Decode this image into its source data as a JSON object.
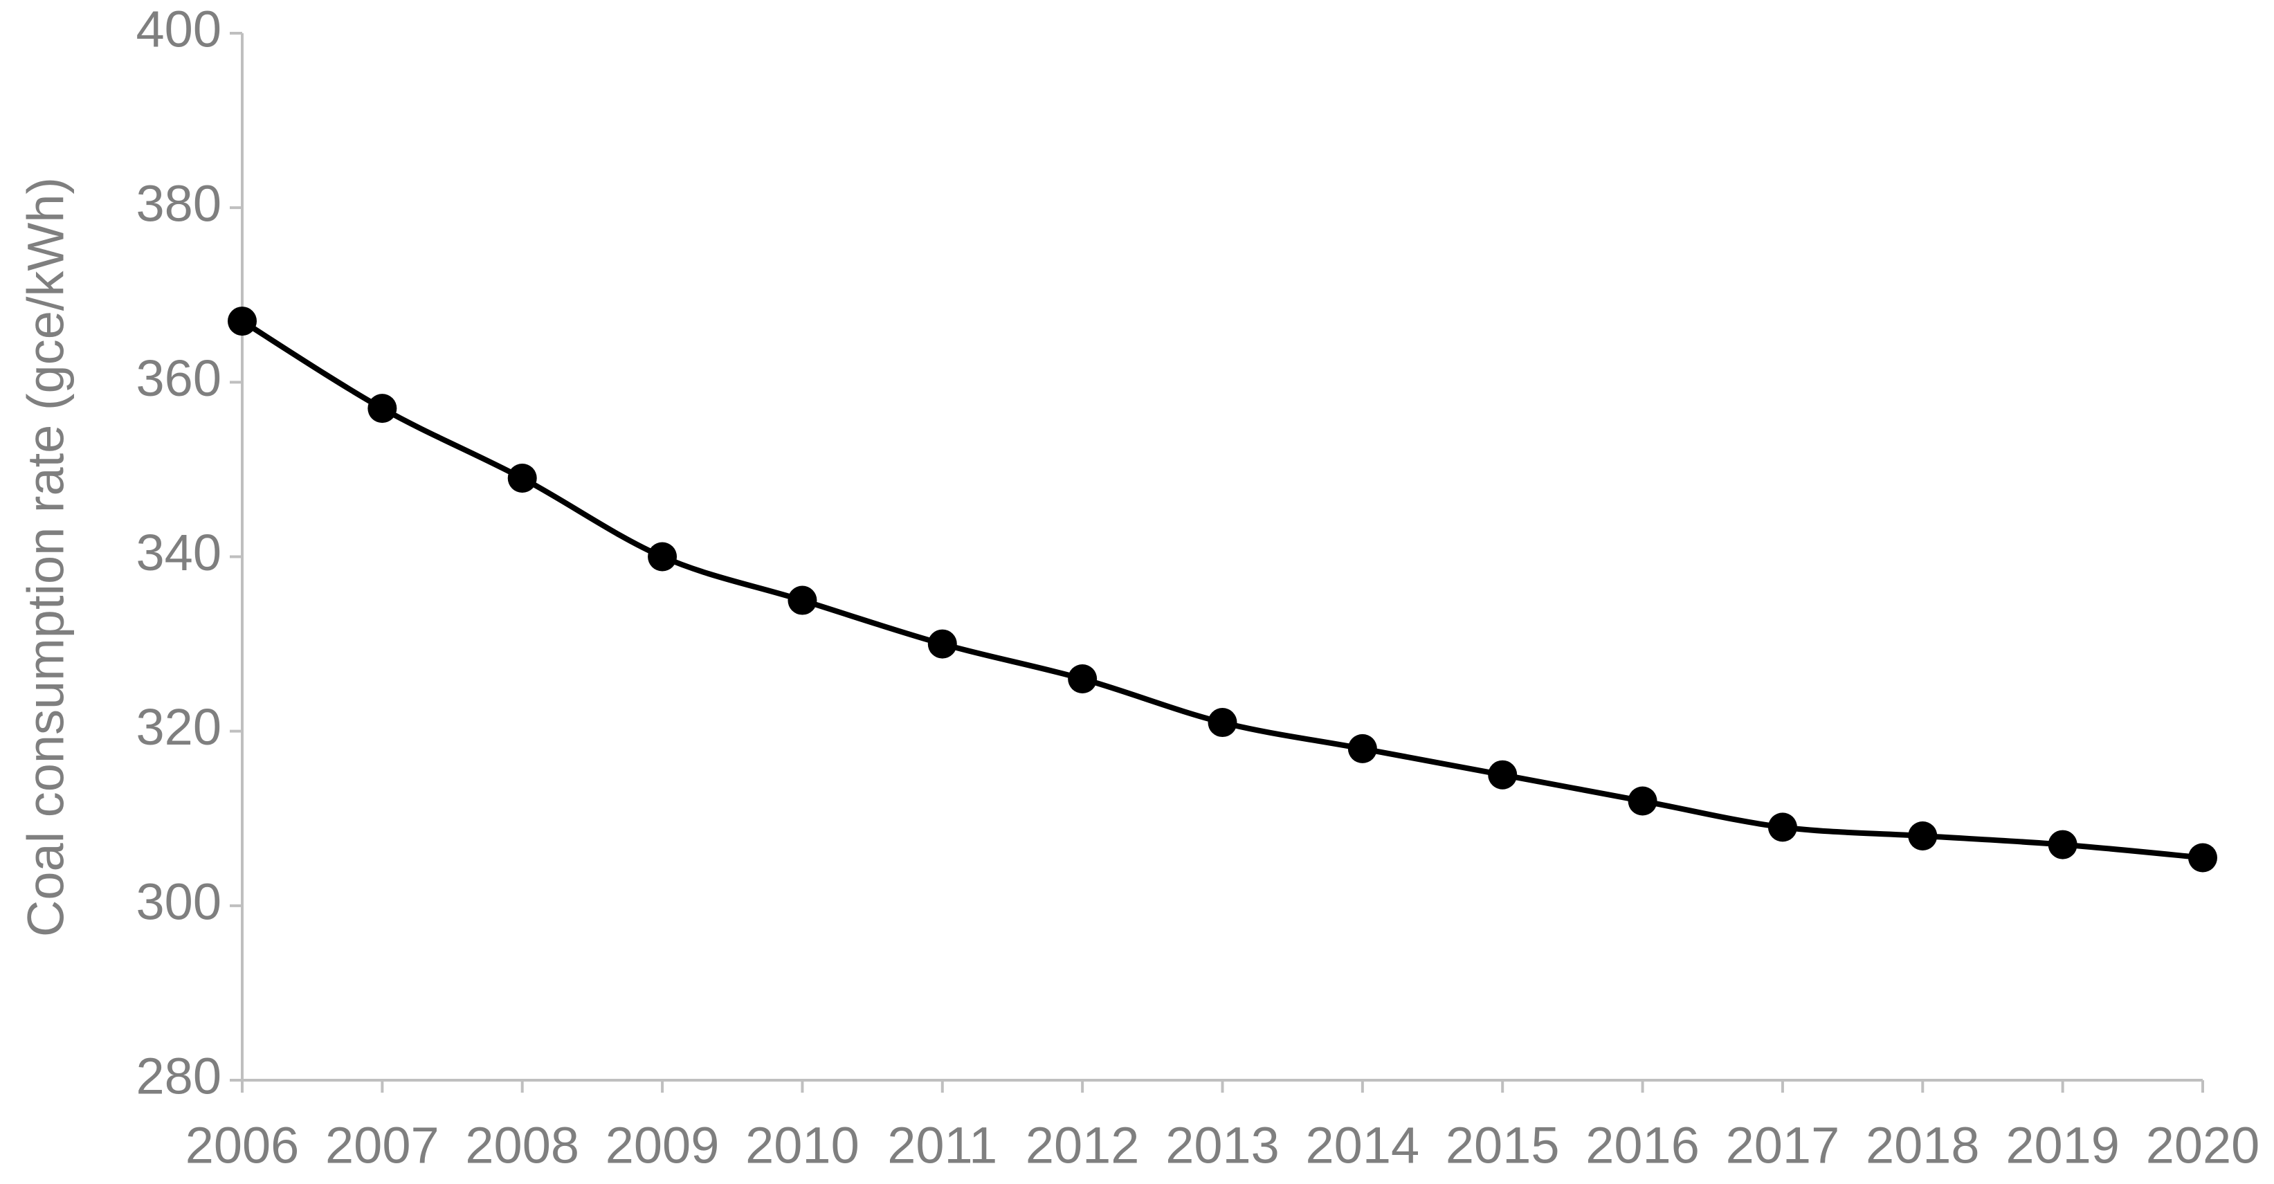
{
  "chart_data": {
    "type": "line",
    "y_label": "Coal consumption rate (gce/kWh)",
    "categories": [
      "2006",
      "2007",
      "2008",
      "2009",
      "2010",
      "2011",
      "2012",
      "2013",
      "2014",
      "2015",
      "2016",
      "2017",
      "2018",
      "2019",
      "2020"
    ],
    "series": [
      {
        "color": "#000000",
        "values": [
          367,
          357,
          349,
          340,
          335,
          330,
          326,
          321,
          318,
          315,
          312,
          309,
          308,
          307,
          305.5
        ]
      }
    ],
    "ylim": [
      280,
      400
    ],
    "yticks": [
      280,
      300,
      320,
      340,
      360,
      380,
      400
    ],
    "grid": false,
    "smooth": true
  }
}
